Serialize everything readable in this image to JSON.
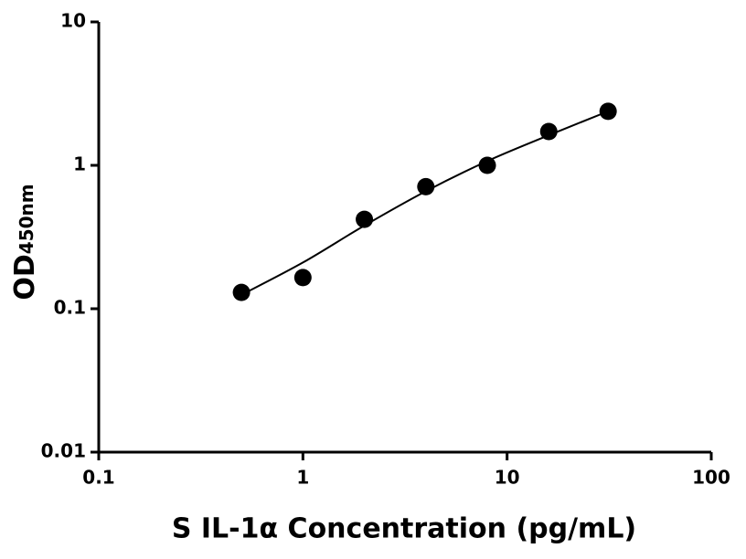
{
  "chart_data": {
    "type": "scatter",
    "x_label": "S IL-1α Concentration (pg/mL)",
    "y_label": {
      "text": "OD",
      "subscript": "450nm"
    },
    "x": [
      0.5,
      1,
      2,
      4,
      8,
      16,
      31.25
    ],
    "series": [
      {
        "color": "#000000",
        "values": [
          0.13,
          0.165,
          0.42,
          0.71,
          1.0,
          1.72,
          2.38
        ]
      }
    ],
    "fit": {
      "color": "#000000",
      "x": [
        0.5,
        1,
        2,
        4,
        8,
        16,
        31.25
      ],
      "values": [
        0.125,
        0.21,
        0.38,
        0.66,
        1.07,
        1.62,
        2.38
      ]
    },
    "xscale": "log",
    "yscale": "log",
    "xlim": [
      0.1,
      100
    ],
    "ylim": [
      0.01,
      10
    ],
    "xticks": [
      0.1,
      1,
      10,
      100
    ],
    "yticks": [
      0.01,
      0.1,
      1,
      10
    ]
  }
}
